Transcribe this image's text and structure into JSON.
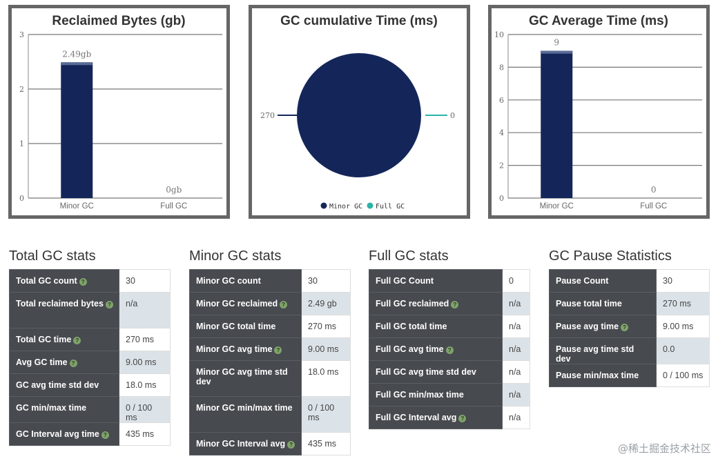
{
  "colors": {
    "bar": "#142659",
    "minor_gc": "#142659",
    "full_gc": "#2bb3a6",
    "panel_border": "#666666",
    "table_key_bg": "#474a4f",
    "table_alt_bg": "#dce3e8",
    "info_icon": "#7fa36a"
  },
  "chart_data": [
    {
      "type": "bar",
      "title": "Reclaimed Bytes (gb)",
      "categories": [
        "Minor GC",
        "Full GC"
      ],
      "values": [
        2.49,
        0
      ],
      "value_labels": [
        "2.49gb",
        "0gb"
      ],
      "ylim": [
        0,
        3
      ],
      "yticks": [
        "0",
        "1",
        "2",
        "3"
      ],
      "grid": true
    },
    {
      "type": "pie",
      "title": "GC cumulative Time (ms)",
      "categories": [
        "Minor GC",
        "Full GC"
      ],
      "values": [
        270,
        0
      ],
      "value_labels": [
        "270",
        "0"
      ],
      "legend": [
        "Minor GC",
        "Full GC"
      ],
      "legend_position": "bottom"
    },
    {
      "type": "bar",
      "title": "GC Average Time (ms)",
      "categories": [
        "Minor GC",
        "Full GC"
      ],
      "values": [
        9,
        0
      ],
      "value_labels": [
        "9",
        "0"
      ],
      "ylim": [
        0,
        10
      ],
      "yticks": [
        "0",
        "2",
        "4",
        "6",
        "8",
        "10"
      ],
      "grid": true
    }
  ],
  "stats": [
    {
      "title": "Total GC stats",
      "rows": [
        {
          "label": "Total GC count",
          "value": "30",
          "info": true
        },
        {
          "label": "Total reclaimed bytes",
          "value": "n/a",
          "info": true
        },
        {
          "label": "Total GC time",
          "value": "270 ms",
          "info": true
        },
        {
          "label": "Avg GC time",
          "value": "9.00 ms",
          "info": true
        },
        {
          "label": "GC avg time std dev",
          "value": "18.0 ms",
          "info": false
        },
        {
          "label": "GC min/max time",
          "value": "0 / 100 ms",
          "info": false
        },
        {
          "label": "GC Interval avg time",
          "value": "435 ms",
          "info": true
        }
      ]
    },
    {
      "title": "Minor GC stats",
      "rows": [
        {
          "label": "Minor GC count",
          "value": "30",
          "info": false
        },
        {
          "label": "Minor GC reclaimed",
          "value": "2.49 gb",
          "info": true
        },
        {
          "label": "Minor GC total time",
          "value": "270 ms",
          "info": false
        },
        {
          "label": "Minor GC avg time",
          "value": "9.00 ms",
          "info": true
        },
        {
          "label": "Minor GC avg time std dev",
          "value": "18.0 ms",
          "info": false
        },
        {
          "label": "Minor GC min/max time",
          "value": "0 / 100 ms",
          "info": false
        },
        {
          "label": "Minor GC Interval avg",
          "value": "435 ms",
          "info": true
        }
      ]
    },
    {
      "title": "Full GC stats",
      "rows": [
        {
          "label": "Full GC Count",
          "value": "0",
          "info": false
        },
        {
          "label": "Full GC reclaimed",
          "value": "n/a",
          "info": true
        },
        {
          "label": "Full GC total time",
          "value": "n/a",
          "info": false
        },
        {
          "label": "Full GC avg time",
          "value": "n/a",
          "info": true
        },
        {
          "label": "Full GC avg time std dev",
          "value": "n/a",
          "info": false
        },
        {
          "label": "Full GC min/max time",
          "value": "n/a",
          "info": false
        },
        {
          "label": "Full GC Interval avg",
          "value": "n/a",
          "info": true
        }
      ]
    },
    {
      "title": "GC Pause Statistics",
      "rows": [
        {
          "label": "Pause Count",
          "value": "30",
          "info": false
        },
        {
          "label": "Pause total time",
          "value": "270 ms",
          "info": false
        },
        {
          "label": "Pause avg time",
          "value": "9.00 ms",
          "info": true
        },
        {
          "label": "Pause avg time std dev",
          "value": "0.0",
          "info": false
        },
        {
          "label": "Pause min/max time",
          "value": "0 / 100 ms",
          "info": false
        }
      ]
    }
  ],
  "info_glyph": "?",
  "watermark": "@稀土掘金技术社区"
}
